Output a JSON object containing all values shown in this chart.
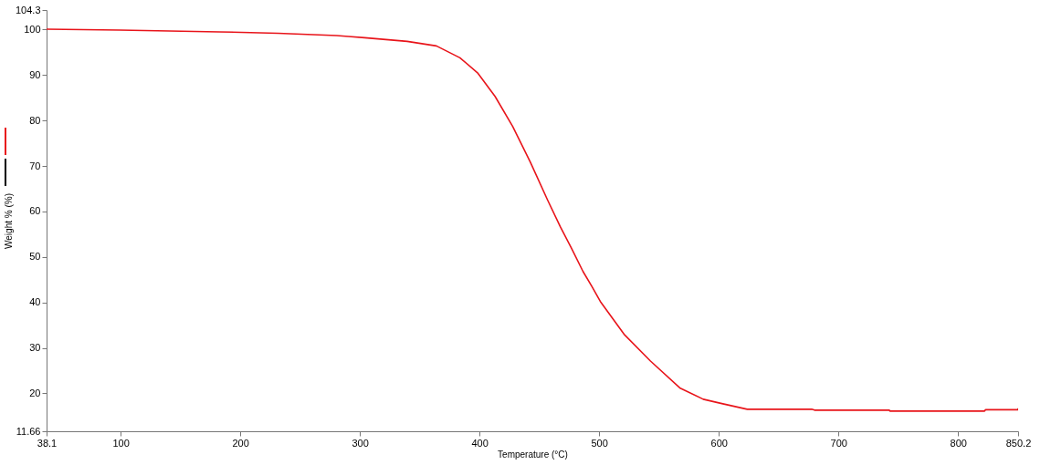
{
  "chart_data": {
    "type": "line",
    "xlabel": "Temperature (°C)",
    "ylabel": "Weight % (%)",
    "x": [
      38.1,
      99.3,
      182.5,
      231.6,
      280.6,
      290.4,
      303.9,
      339.5,
      364,
      383.6,
      398.3,
      413,
      427.7,
      442.4,
      457.1,
      467.6,
      476.7,
      486.5,
      493.9,
      501,
      520.8,
      542.9,
      567.4,
      587,
      601.7,
      623.8,
      677.7,
      680,
      742.6,
      743,
      822,
      823,
      850,
      850.2
    ],
    "series": [
      {
        "color": "#e8141a",
        "values": [
          100.1,
          99.9,
          99.5,
          99.2,
          98.7,
          98.5,
          98.2,
          97.4,
          96.4,
          93.8,
          90.5,
          85.3,
          78.7,
          70.9,
          62.4,
          56.6,
          52,
          46.8,
          43.5,
          40.2,
          33,
          27.1,
          21.2,
          18.7,
          17.8,
          16.5,
          16.5,
          16.3,
          16.3,
          16.1,
          16.1,
          16.4,
          16.4,
          16.7
        ]
      }
    ],
    "xlim": [
      38.1,
      850.2
    ],
    "xticks": [
      38.1,
      100,
      200,
      300,
      400,
      500,
      600,
      700,
      800,
      850.2
    ],
    "ylim": [
      11.66,
      104.3
    ],
    "yticks": [
      11.66,
      20,
      30,
      40,
      50,
      60,
      70,
      80,
      90,
      100,
      104.3
    ],
    "grid": false
  }
}
